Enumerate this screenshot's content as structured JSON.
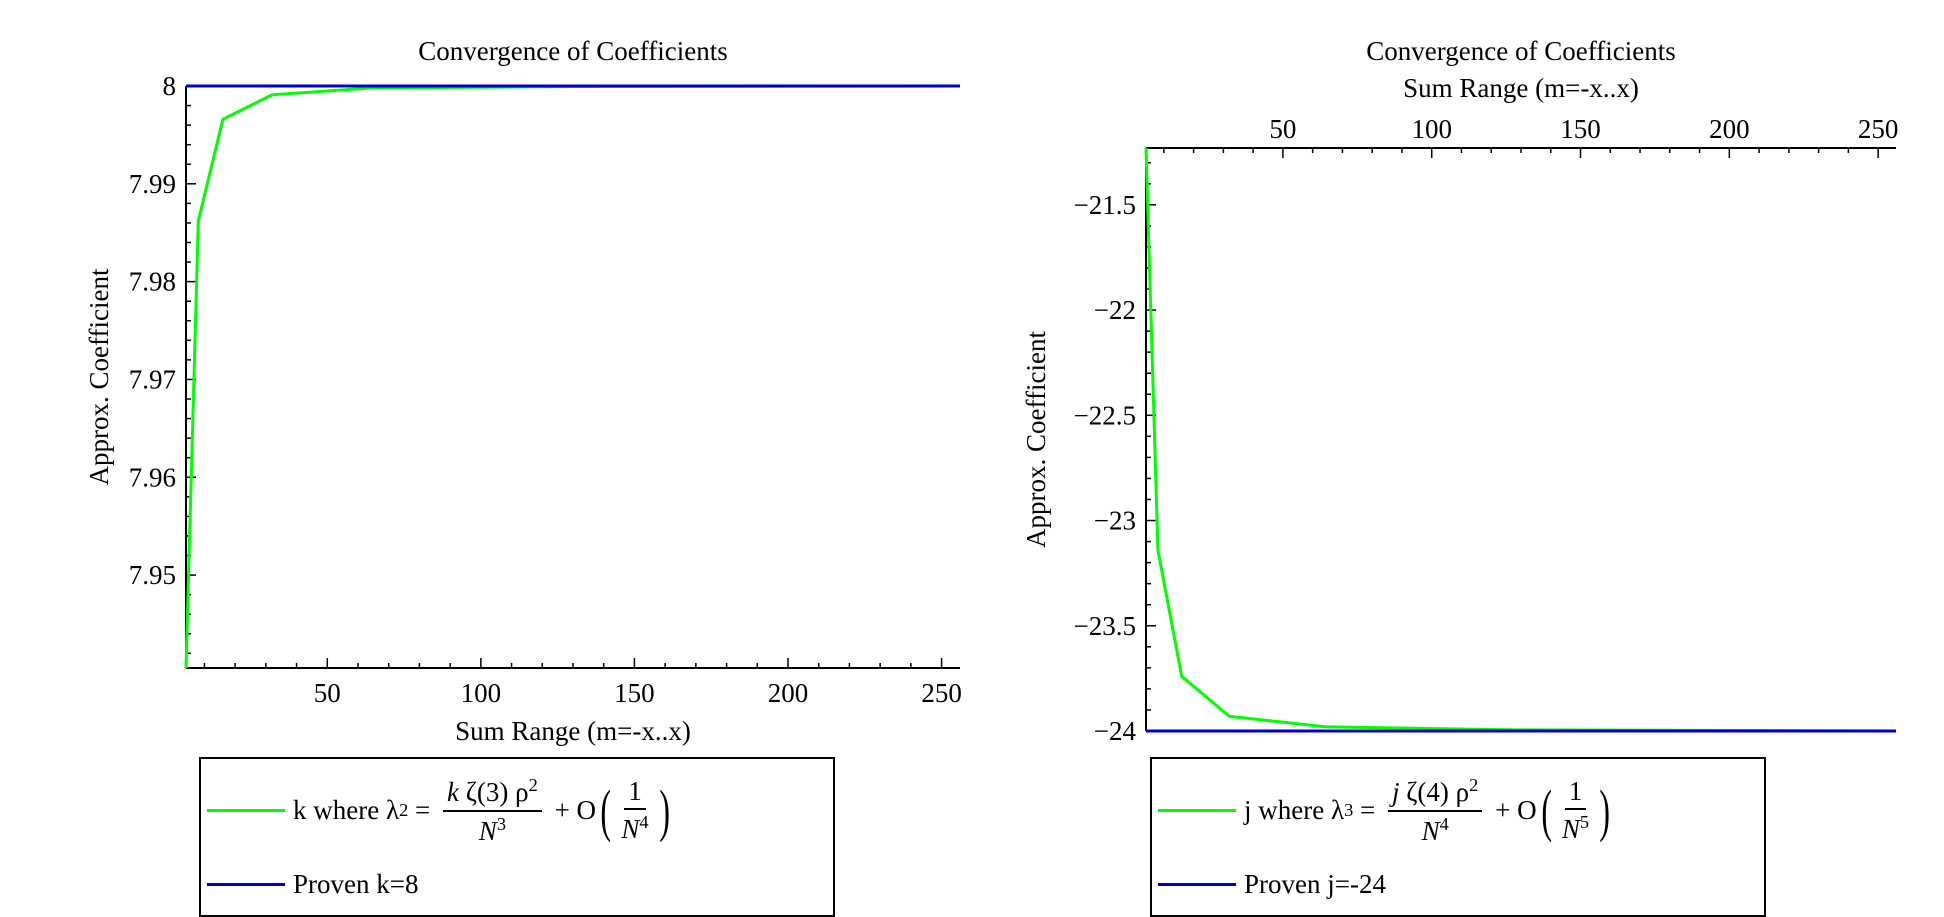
{
  "chart_data": [
    {
      "type": "line",
      "title": "Convergence of Coefficients",
      "xlabel": "Sum Range (m=-x..x)",
      "ylabel": "Approx. Coefficient",
      "x_axis_position": "bottom",
      "xlim": [
        4,
        256
      ],
      "ylim": [
        7.9405,
        8.0
      ],
      "x_ticks": [
        "50",
        "100",
        "150",
        "200",
        "250"
      ],
      "y_ticks": [
        "8",
        "7.99",
        "7.98",
        "7.97",
        "7.96",
        "7.95"
      ],
      "series": [
        {
          "name": "k where λ2 = k ζ(3) ρ2 / N3 + O(1/N4)",
          "color": "#00ff00",
          "x": [
            4,
            8,
            16,
            32,
            64,
            128,
            256
          ],
          "y": [
            7.9405,
            7.9862,
            7.9966,
            7.9991,
            7.9998,
            7.99995,
            8.0
          ]
        },
        {
          "name": "Proven k=8",
          "color": "#0000cd",
          "x": [
            4,
            256
          ],
          "y": [
            8.0,
            8.0
          ]
        }
      ],
      "legend": {
        "placement": "bottom-left",
        "entry1_text": "k where λ",
        "entry1_sub": "2",
        "entry1_var": "k",
        "entry1_zeta": "ζ(3)",
        "entry1_rho": "ρ",
        "entry1_rho_pow": "2",
        "entry1_den": "N",
        "entry1_den_pow": "3",
        "entry1_o": "O",
        "entry1_o_num": "1",
        "entry1_o_den": "N",
        "entry1_o_pow": "4",
        "entry2_text": "Proven k=8"
      }
    },
    {
      "type": "line",
      "title": "Convergence of Coefficients",
      "xlabel": "Sum Range (m=-x..x)",
      "ylabel": "Approx. Coefficient",
      "x_axis_position": "top",
      "xlim": [
        4,
        256
      ],
      "ylim": [
        -24.0,
        -21.23
      ],
      "x_ticks": [
        "50",
        "100",
        "150",
        "200",
        "250"
      ],
      "y_ticks": [
        "-21.5",
        "-22",
        "-22.5",
        "-23",
        "-23.5",
        "-24"
      ],
      "series": [
        {
          "name": "j where λ3 = j ζ(4) ρ2 / N4 + O(1/N5)",
          "color": "#00ff00",
          "x": [
            4,
            8,
            16,
            32,
            64,
            128,
            256
          ],
          "y": [
            -21.23,
            -23.14,
            -23.74,
            -23.93,
            -23.98,
            -23.995,
            -24.0
          ]
        },
        {
          "name": "Proven j=-24",
          "color": "#0000cd",
          "x": [
            4,
            256
          ],
          "y": [
            -24.0,
            -24.0
          ]
        }
      ],
      "legend": {
        "placement": "bottom-left",
        "entry1_text": "j where λ",
        "entry1_sub": "3",
        "entry1_var": "j",
        "entry1_zeta": "ζ(4)",
        "entry1_rho": "ρ",
        "entry1_rho_pow": "2",
        "entry1_den": "N",
        "entry1_den_pow": "4",
        "entry1_o": "O",
        "entry1_o_num": "1",
        "entry1_o_den": "N",
        "entry1_o_pow": "5",
        "entry2_text": "Proven j=-24"
      }
    }
  ]
}
